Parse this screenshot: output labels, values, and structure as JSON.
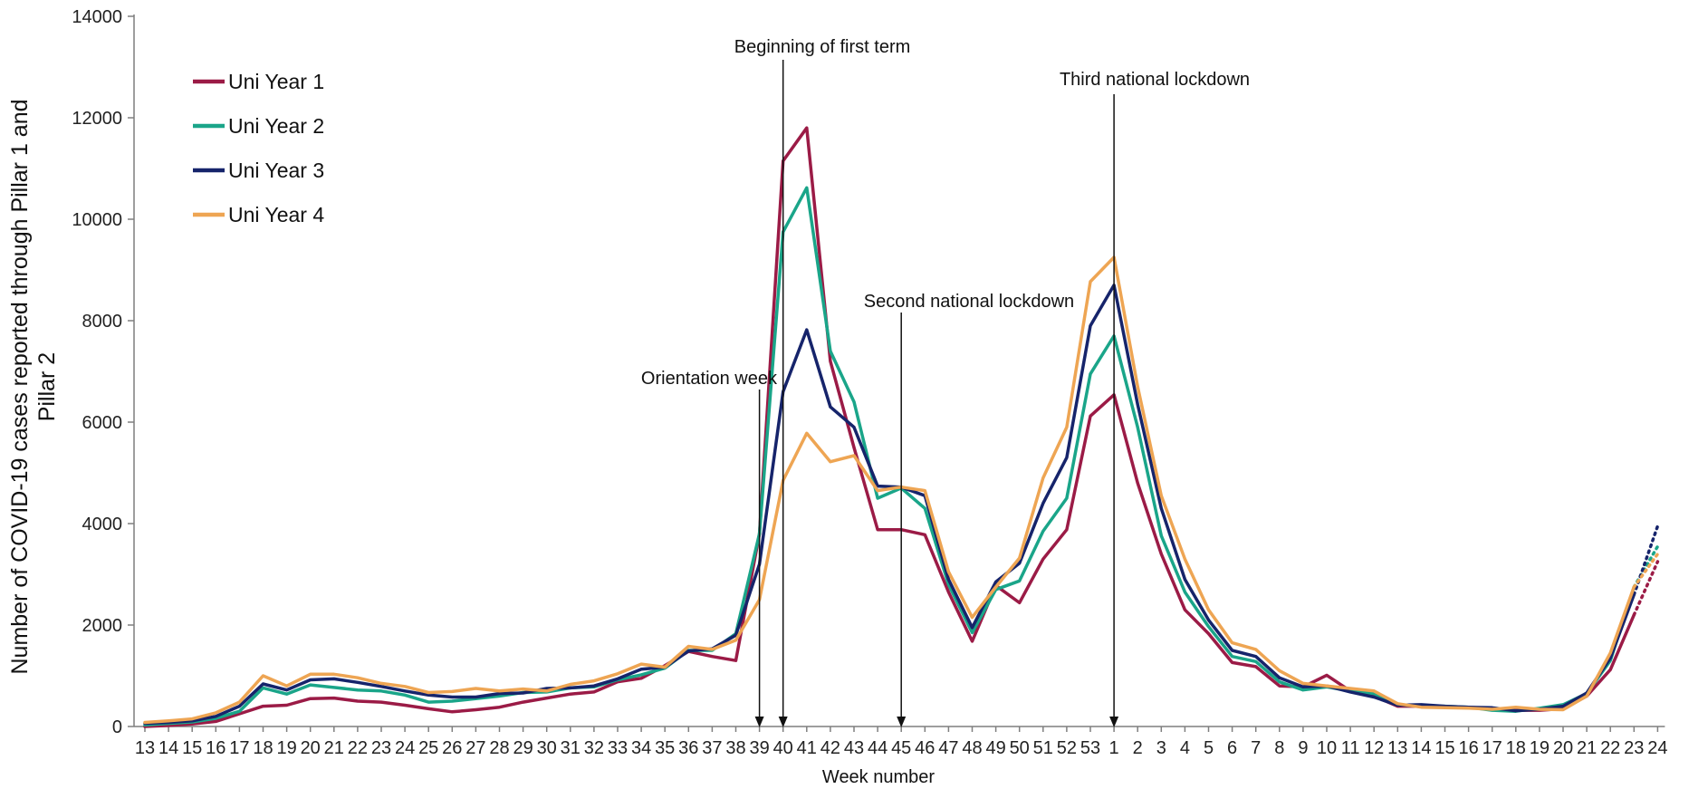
{
  "chart_data": {
    "type": "line",
    "title": "",
    "xlabel": "Week number",
    "ylabel": "Number of COVID-19 cases reported through Pillar 1 and Pillar 2",
    "ylabel_lines": [
      "Number of COVID-19 cases reported through Pillar 1 and",
      "Pillar 2"
    ],
    "ylim": [
      0,
      14000
    ],
    "yticks": [
      0,
      2000,
      4000,
      6000,
      8000,
      10000,
      12000,
      14000
    ],
    "ytick_labels": [
      "0",
      "2000",
      "4000",
      "6000",
      "8000",
      "10000",
      "12000",
      "14000"
    ],
    "grid": false,
    "legend_position": "top-left",
    "categories": [
      "13",
      "14",
      "15",
      "16",
      "17",
      "18",
      "19",
      "20",
      "21",
      "22",
      "23",
      "24",
      "25",
      "26",
      "27",
      "28",
      "29",
      "30",
      "31",
      "32",
      "33",
      "34",
      "35",
      "36",
      "37",
      "38",
      "39",
      "40",
      "41",
      "42",
      "43",
      "44",
      "45",
      "46",
      "47",
      "48",
      "49",
      "50",
      "51",
      "52",
      "53",
      "1",
      "2",
      "3",
      "4",
      "5",
      "6",
      "7",
      "8",
      "9",
      "10",
      "11",
      "12",
      "13",
      "14",
      "15",
      "16",
      "17",
      "18",
      "19",
      "20",
      "21",
      "22",
      "23",
      "24"
    ],
    "series": [
      {
        "name": "Uni Year 1",
        "color": "#9b1b46",
        "values": [
          0,
          20,
          50,
          100,
          250,
          400,
          420,
          550,
          560,
          500,
          480,
          420,
          350,
          290,
          330,
          380,
          480,
          560,
          640,
          680,
          880,
          950,
          1200,
          1480,
          1380,
          1300,
          3800,
          11150,
          11800,
          7200,
          5500,
          3880,
          3880,
          3780,
          2650,
          1680,
          2780,
          2440,
          3300,
          3880,
          6120,
          6540,
          4800,
          3400,
          2300,
          1830,
          1260,
          1180,
          800,
          780,
          1010,
          700,
          600,
          400,
          400,
          390,
          380,
          350,
          320,
          320,
          350,
          600,
          1120,
          2200,
          null
        ],
        "projection": [
          2200,
          3250
        ]
      },
      {
        "name": "Uni Year 2",
        "color": "#1aa589",
        "values": [
          30,
          60,
          90,
          160,
          300,
          760,
          640,
          820,
          770,
          720,
          700,
          620,
          480,
          500,
          550,
          600,
          670,
          680,
          760,
          780,
          920,
          1020,
          1150,
          1500,
          1500,
          1830,
          3800,
          9750,
          10620,
          7400,
          6400,
          4500,
          4700,
          4300,
          2800,
          1850,
          2700,
          2870,
          3850,
          4500,
          6950,
          7700,
          5900,
          3760,
          2650,
          1970,
          1380,
          1280,
          880,
          720,
          780,
          700,
          650,
          430,
          400,
          400,
          380,
          320,
          300,
          360,
          430,
          650,
          1300,
          2750,
          null
        ],
        "projection": [
          2750,
          3550
        ]
      },
      {
        "name": "Uni Year 3",
        "color": "#16246b",
        "values": [
          60,
          80,
          110,
          200,
          400,
          840,
          720,
          920,
          940,
          870,
          790,
          700,
          620,
          580,
          580,
          650,
          660,
          750,
          760,
          800,
          940,
          1130,
          1170,
          1490,
          1530,
          1800,
          3200,
          6600,
          7820,
          6300,
          5900,
          4740,
          4720,
          4550,
          2900,
          1950,
          2850,
          3220,
          4400,
          5300,
          7900,
          8700,
          6350,
          4300,
          2900,
          2100,
          1500,
          1380,
          960,
          780,
          800,
          680,
          580,
          420,
          430,
          400,
          380,
          370,
          310,
          340,
          400,
          660,
          1350,
          2600,
          null
        ],
        "projection": [
          2600,
          3950
        ]
      },
      {
        "name": "Uni Year 4",
        "color": "#eea553",
        "values": [
          80,
          110,
          150,
          270,
          480,
          1000,
          800,
          1030,
          1030,
          960,
          850,
          790,
          670,
          690,
          750,
          700,
          740,
          700,
          830,
          900,
          1040,
          1230,
          1170,
          1580,
          1520,
          1700,
          2500,
          4850,
          5780,
          5220,
          5340,
          4650,
          4720,
          4650,
          3050,
          2150,
          2750,
          3320,
          4900,
          5900,
          8770,
          9250,
          6700,
          4550,
          3300,
          2300,
          1650,
          1520,
          1100,
          850,
          800,
          750,
          700,
          450,
          380,
          370,
          360,
          340,
          380,
          340,
          330,
          600,
          1450,
          2750,
          null
        ],
        "projection": [
          2750,
          3400
        ]
      }
    ],
    "annotations": [
      {
        "label": "Orientation week",
        "category_index": 26
      },
      {
        "label": "Beginning of first term",
        "category_index": 27
      },
      {
        "label": "Second national lockdown",
        "category_index": 32
      },
      {
        "label": "Third national lockdown",
        "category_index": 41
      }
    ]
  }
}
